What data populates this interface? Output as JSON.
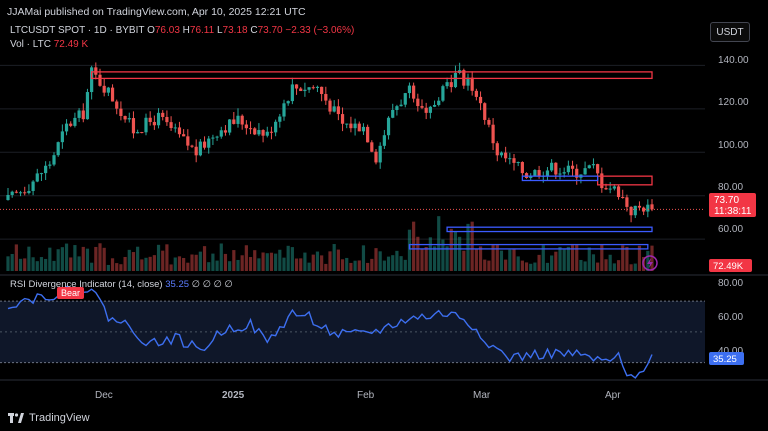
{
  "header": {
    "published": "JJAMai published on TradingView.com, Apr 10, 2025 12:21 UTC"
  },
  "legend": {
    "symbol": "LTCUSDT SPOT · 1D · BYBIT",
    "o_label": "O",
    "o": "76.03",
    "h_label": "H",
    "h": "76.11",
    "l_label": "L",
    "l": "73.18",
    "c_label": "C",
    "c": "73.70",
    "change": "−2.33 (−3.06%)",
    "vol_label": "Vol · LTC",
    "vol_value": "72.49 K"
  },
  "currency_button": "USDT",
  "price_axis": {
    "ticks": [
      "140.00",
      "120.00",
      "100.00",
      "80.00",
      "60.00"
    ],
    "tick_values": [
      140,
      120,
      100,
      80,
      60
    ]
  },
  "last_price": {
    "value": "73.70",
    "countdown": "11:38:11"
  },
  "volume_badge": "72.49K",
  "rsi": {
    "title": "RSI Divergence Indicator (14, close)",
    "value": "35.25",
    "extras": "∅ ∅ ∅ ∅",
    "bear_label": "Bear",
    "ticks": [
      "80.00",
      "60.00",
      "40.00"
    ],
    "tick_values": [
      80,
      60,
      40
    ]
  },
  "time_axis": [
    "Dec",
    "2025",
    "Feb",
    "Mar",
    "Apr"
  ],
  "branding": "TradingView",
  "colors": {
    "up": "#26a69a",
    "down": "#ef5350",
    "rsi_line": "#3d6ff0",
    "zone_red": "#f23645",
    "zone_blue": "#3b5bff"
  },
  "chart_data": {
    "type": "candlestick",
    "symbol": "LTCUSDT",
    "interval": "1D",
    "ylim": [
      55,
      148
    ],
    "rsi_ylim": [
      20,
      85
    ],
    "seed": 17,
    "anchors": [
      [
        0,
        78
      ],
      [
        5,
        85
      ],
      [
        10,
        95
      ],
      [
        14,
        112
      ],
      [
        18,
        118
      ],
      [
        20,
        137
      ],
      [
        24,
        128
      ],
      [
        30,
        110
      ],
      [
        36,
        116
      ],
      [
        45,
        100
      ],
      [
        50,
        110
      ],
      [
        55,
        115
      ],
      [
        62,
        108
      ],
      [
        68,
        130
      ],
      [
        74,
        130
      ],
      [
        80,
        113
      ],
      [
        85,
        112
      ],
      [
        88,
        98
      ],
      [
        92,
        120
      ],
      [
        96,
        128
      ],
      [
        100,
        116
      ],
      [
        104,
        130
      ],
      [
        108,
        135
      ],
      [
        112,
        128
      ],
      [
        117,
        100
      ],
      [
        124,
        90
      ],
      [
        130,
        93
      ],
      [
        136,
        91
      ],
      [
        140,
        93
      ],
      [
        142,
        86
      ],
      [
        146,
        82
      ],
      [
        149,
        73
      ],
      [
        152,
        75
      ],
      [
        154,
        73.7
      ]
    ],
    "rsi_anchors": [
      [
        0,
        68
      ],
      [
        6,
        72
      ],
      [
        12,
        75
      ],
      [
        18,
        78
      ],
      [
        20,
        78
      ],
      [
        24,
        60
      ],
      [
        28,
        55
      ],
      [
        34,
        42
      ],
      [
        40,
        46
      ],
      [
        46,
        38
      ],
      [
        52,
        52
      ],
      [
        58,
        55
      ],
      [
        62,
        43
      ],
      [
        68,
        62
      ],
      [
        72,
        60
      ],
      [
        78,
        48
      ],
      [
        84,
        48
      ],
      [
        90,
        52
      ],
      [
        95,
        58
      ],
      [
        100,
        60
      ],
      [
        104,
        62
      ],
      [
        108,
        60
      ],
      [
        112,
        52
      ],
      [
        116,
        40
      ],
      [
        120,
        33
      ],
      [
        126,
        35
      ],
      [
        132,
        36
      ],
      [
        138,
        34
      ],
      [
        142,
        30
      ],
      [
        146,
        33
      ],
      [
        148,
        20
      ],
      [
        151,
        24
      ],
      [
        154,
        35.25
      ]
    ],
    "zones_red": [
      {
        "x0": 20,
        "x1": 154,
        "y0": 134,
        "y1": 137
      },
      {
        "x0": 141,
        "x1": 154,
        "y0": 85,
        "y1": 89
      }
    ],
    "zones_blue": [
      {
        "x0": 123,
        "x1": 141,
        "y0": 87,
        "y1": 89
      },
      {
        "x0": 105,
        "x1": 154,
        "y0": 63.5,
        "y1": 65.5
      },
      {
        "x0": 96,
        "x1": 153,
        "y0": 55.5,
        "y1": 57.5
      }
    ],
    "bear_at_index": 15
  }
}
